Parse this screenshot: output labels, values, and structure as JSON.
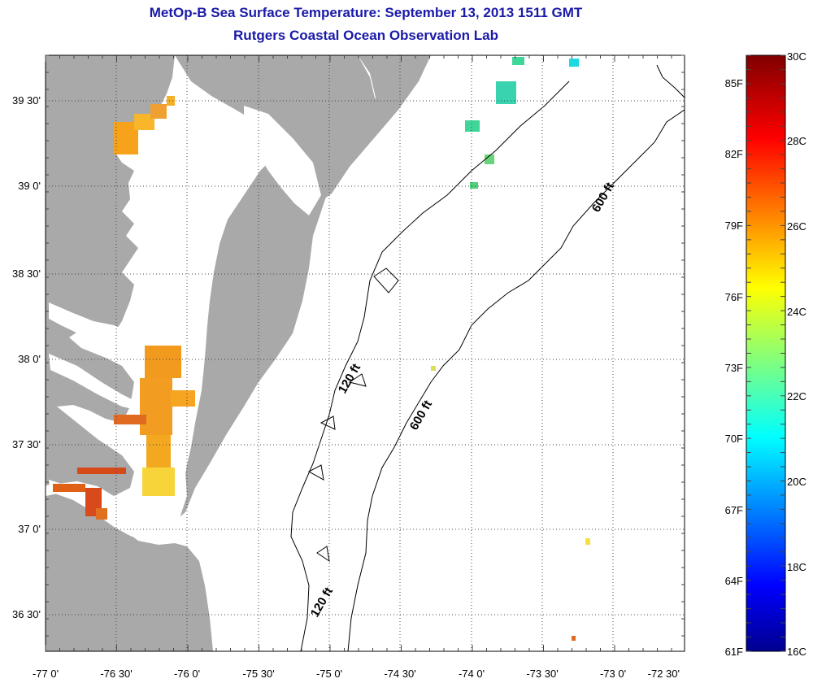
{
  "title": {
    "line1": "MetOp-B Sea Surface Temperature:  September 13, 2013 1511 GMT",
    "line2": "Rutgers Coastal Ocean Observation Lab"
  },
  "map": {
    "lon_labels": [
      "-77 0'",
      "-76 30'",
      "-76 0'",
      "-75 30'",
      "-75 0'",
      "-74 30'",
      "-74 0'",
      "-73 30'",
      "-73 0'",
      "-72 30'"
    ],
    "lat_labels": [
      "39 30'",
      "39 0'",
      "38 30'",
      "38 0'",
      "37 30'",
      "37 0'",
      "36 30'"
    ],
    "contour_labels": [
      "600 ft",
      "120 ft",
      "600 ft",
      "120 ft"
    ],
    "colors": {
      "land": "#a9a9a9",
      "ocean": "#ffffff",
      "grid": "#555555"
    }
  },
  "colorbar": {
    "celsius_labels": [
      "30C",
      "28C",
      "26C",
      "24C",
      "22C",
      "20C",
      "18C",
      "16C"
    ],
    "fahrenheit_labels": [
      "85F",
      "82F",
      "79F",
      "76F",
      "73F",
      "70F",
      "67F",
      "64F",
      "61F"
    ],
    "range_c": [
      16,
      30
    ],
    "colormap": "jet"
  }
}
